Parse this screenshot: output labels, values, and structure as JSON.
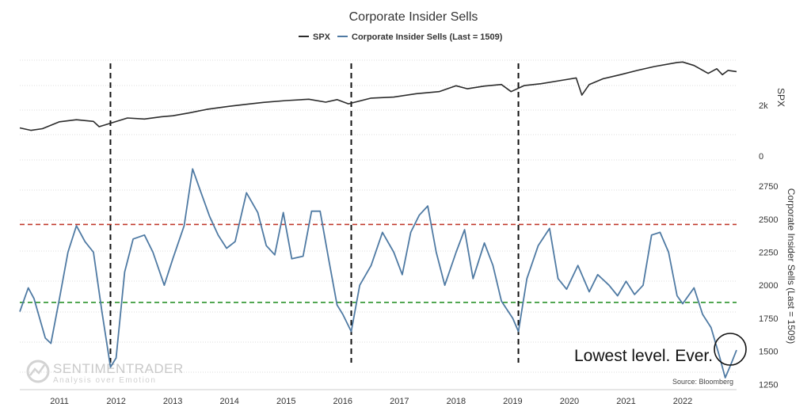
{
  "chart_data": {
    "type": "line",
    "title": "Corporate Insider Sells",
    "legend": [
      "SPX",
      "Corporate Insider Sells (Last = 1509)"
    ],
    "legend_placement": "top-center",
    "colors": {
      "spx": "#2b2b2b",
      "sells": "#4f7aa3",
      "upper_line": "#c0392b",
      "lower_line": "#1a8a1a",
      "vlines": "#111111"
    },
    "x_ticks": [
      "2011",
      "2012",
      "2013",
      "2014",
      "2015",
      "2016",
      "2017",
      "2018",
      "2019",
      "2020",
      "2021",
      "2022"
    ],
    "xlim": [
      2010.3,
      2022.95
    ],
    "spx_axis": {
      "title": "SPX",
      "ticks": [
        "2k",
        "0"
      ],
      "log_scale": true
    },
    "sells_axis": {
      "title": "Corporate Insider Sells (Last = 1509)",
      "ticks": [
        "2750",
        "2500",
        "2250",
        "2000",
        "1750",
        "1500",
        "1250"
      ],
      "ylim": [
        1210,
        2960
      ]
    },
    "grid": true,
    "reference_lines": {
      "upper": 2460,
      "lower": 1870
    },
    "vertical_markers": [
      2011.9,
      2016.15,
      2019.1
    ],
    "spx": {
      "x": [
        2010.3,
        2010.5,
        2010.7,
        2011.0,
        2011.3,
        2011.6,
        2011.7,
        2011.9,
        2012.2,
        2012.5,
        2012.8,
        2013.0,
        2013.3,
        2013.6,
        2014.0,
        2014.3,
        2014.6,
        2015.0,
        2015.4,
        2015.7,
        2015.9,
        2016.1,
        2016.5,
        2016.9,
        2017.3,
        2017.7,
        2018.0,
        2018.2,
        2018.5,
        2018.8,
        2018.97,
        2019.2,
        2019.5,
        2019.9,
        2020.12,
        2020.22,
        2020.35,
        2020.6,
        2020.9,
        2021.2,
        2021.5,
        2021.9,
        2022.0,
        2022.2,
        2022.45,
        2022.6,
        2022.7,
        2022.8,
        2022.95
      ],
      "y": [
        1120,
        1060,
        1100,
        1280,
        1340,
        1290,
        1150,
        1240,
        1390,
        1360,
        1430,
        1460,
        1560,
        1680,
        1800,
        1880,
        1960,
        2040,
        2100,
        1970,
        2080,
        1900,
        2150,
        2200,
        2370,
        2480,
        2820,
        2640,
        2800,
        2900,
        2480,
        2830,
        2950,
        3200,
        3350,
        2300,
        2900,
        3300,
        3600,
        3950,
        4300,
        4700,
        4750,
        4400,
        3700,
        4100,
        3600,
        3950,
        3850
      ]
    },
    "sells": {
      "x": [
        2010.3,
        2010.45,
        2010.55,
        2010.75,
        2010.85,
        2011.0,
        2011.15,
        2011.3,
        2011.45,
        2011.6,
        2011.75,
        2011.9,
        2012.0,
        2012.15,
        2012.3,
        2012.5,
        2012.65,
        2012.85,
        2013.0,
        2013.2,
        2013.35,
        2013.5,
        2013.65,
        2013.8,
        2013.95,
        2014.1,
        2014.3,
        2014.5,
        2014.65,
        2014.8,
        2014.95,
        2015.1,
        2015.3,
        2015.45,
        2015.6,
        2015.75,
        2015.9,
        2016.0,
        2016.15,
        2016.3,
        2016.5,
        2016.7,
        2016.9,
        2017.05,
        2017.2,
        2017.35,
        2017.5,
        2017.65,
        2017.8,
        2018.0,
        2018.15,
        2018.3,
        2018.5,
        2018.65,
        2018.8,
        2019.0,
        2019.1,
        2019.25,
        2019.45,
        2019.65,
        2019.8,
        2019.95,
        2020.15,
        2020.35,
        2020.5,
        2020.7,
        2020.85,
        2021.0,
        2021.15,
        2021.3,
        2021.45,
        2021.6,
        2021.75,
        2021.9,
        2022.0,
        2022.2,
        2022.35,
        2022.5,
        2022.65,
        2022.75,
        2022.85,
        2022.95
      ],
      "y": [
        1800,
        1980,
        1900,
        1600,
        1560,
        1900,
        2250,
        2450,
        2330,
        2250,
        1800,
        1380,
        1450,
        2100,
        2350,
        2380,
        2250,
        2000,
        2200,
        2450,
        2880,
        2700,
        2520,
        2380,
        2280,
        2330,
        2700,
        2550,
        2300,
        2230,
        2550,
        2200,
        2220,
        2560,
        2560,
        2200,
        1850,
        1780,
        1650,
        2000,
        2150,
        2400,
        2250,
        2080,
        2400,
        2530,
        2600,
        2250,
        2000,
        2250,
        2420,
        2050,
        2320,
        2150,
        1880,
        1750,
        1650,
        2050,
        2300,
        2430,
        2050,
        1970,
        2150,
        1950,
        2080,
        2000,
        1920,
        2030,
        1930,
        2000,
        2380,
        2400,
        2250,
        1920,
        1860,
        1980,
        1780,
        1680,
        1460,
        1300,
        1400,
        1509
      ]
    },
    "annotation": "Lowest level. Ever.",
    "source": "Source: Bloomberg",
    "watermark": {
      "name": "SENTIMENTRADER",
      "tagline": "Analysis over Emotion"
    }
  }
}
